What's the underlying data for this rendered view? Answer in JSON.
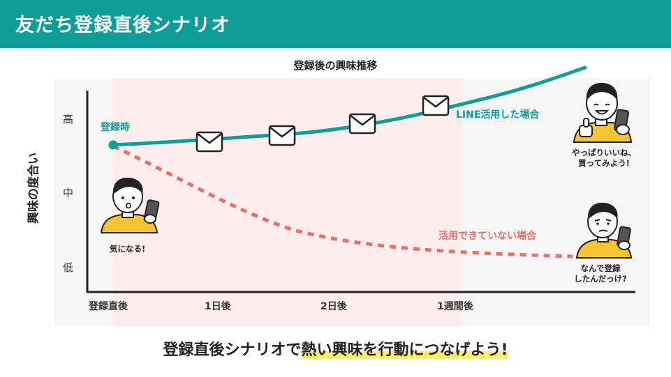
{
  "header": {
    "title": "友だち登録直後シナリオ"
  },
  "chart": {
    "title": "登録後の興味推移",
    "ylabel": "興味の度合い",
    "levels": [
      "高",
      "中",
      "低"
    ],
    "xticks": [
      "登録直後",
      "1日後",
      "2日後",
      "1週間後"
    ],
    "start_label": "登録時",
    "series": [
      {
        "name": "LINE活用した場合",
        "color": "#0d9e98",
        "style": "solid"
      },
      {
        "name": "活用できていない場合",
        "color": "#ea6e6a",
        "style": "dashed"
      }
    ]
  },
  "characters": {
    "start": {
      "caption": "気になる!"
    },
    "success": {
      "caption_line1": "やっぱりいいね、",
      "caption_line2": "買ってみよう!"
    },
    "fail": {
      "caption_line1": "なんで登録",
      "caption_line2": "したんだっけ?"
    }
  },
  "footer": {
    "prefix": "登録直後シナリオで",
    "highlight": "熱い興味を行動につなげよう!"
  },
  "colors": {
    "brand": "#0d9e98",
    "negative": "#ea6e6a",
    "highlight_band": "#fdeeed",
    "panel": "#f5f5f5",
    "marker": "#f7ec7a",
    "shirt": "#f4c531"
  },
  "icons": [
    "envelope-icon",
    "smartphone-icon",
    "thumbs-up-icon"
  ]
}
